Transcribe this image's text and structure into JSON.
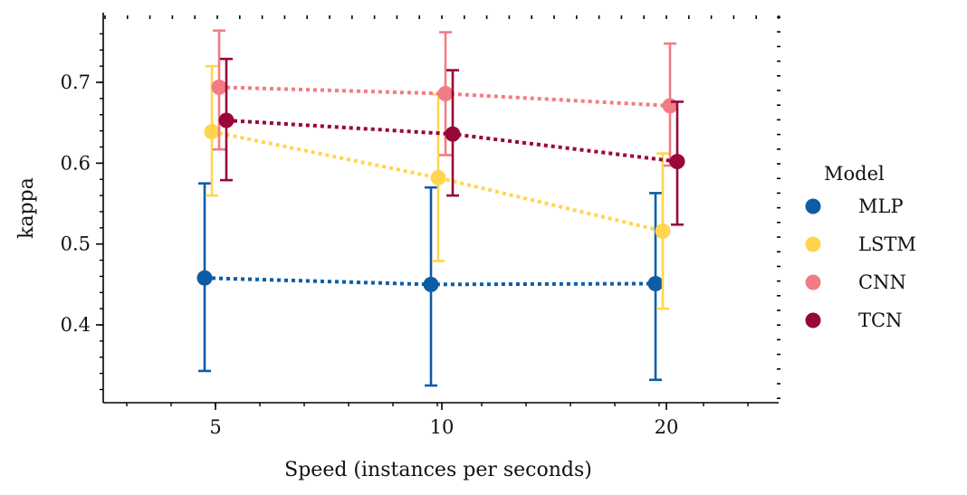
{
  "chart_data": {
    "type": "scatter",
    "xlabel": "Speed (instances per seconds)",
    "ylabel": "kappa",
    "categories": [
      "5",
      "10",
      "20"
    ],
    "ylim": [
      0.3,
      0.78
    ],
    "yticks": [
      "0.4",
      "0.5",
      "0.6",
      "0.7"
    ],
    "grid": false,
    "legend": {
      "title": "Model",
      "placement": "right outside"
    },
    "series": [
      {
        "name": "MLP",
        "color": "#0c5da5",
        "values": [
          0.458,
          0.45,
          0.451
        ],
        "err_low": [
          0.343,
          0.325,
          0.332
        ],
        "err_high": [
          0.575,
          0.57,
          0.563
        ]
      },
      {
        "name": "LSTM",
        "color": "#ffd54f",
        "values": [
          0.639,
          0.582,
          0.516
        ],
        "err_low": [
          0.56,
          0.479,
          0.42
        ],
        "err_high": [
          0.72,
          0.685,
          0.612
        ]
      },
      {
        "name": "CNN",
        "color": "#f27c84",
        "values": [
          0.694,
          0.686,
          0.671
        ],
        "err_low": [
          0.617,
          0.61,
          0.597
        ],
        "err_high": [
          0.764,
          0.762,
          0.748
        ]
      },
      {
        "name": "TCN",
        "color": "#990638",
        "values": [
          0.653,
          0.636,
          0.602
        ],
        "err_low": [
          0.579,
          0.56,
          0.524
        ],
        "err_high": [
          0.729,
          0.715,
          0.676
        ]
      }
    ]
  }
}
